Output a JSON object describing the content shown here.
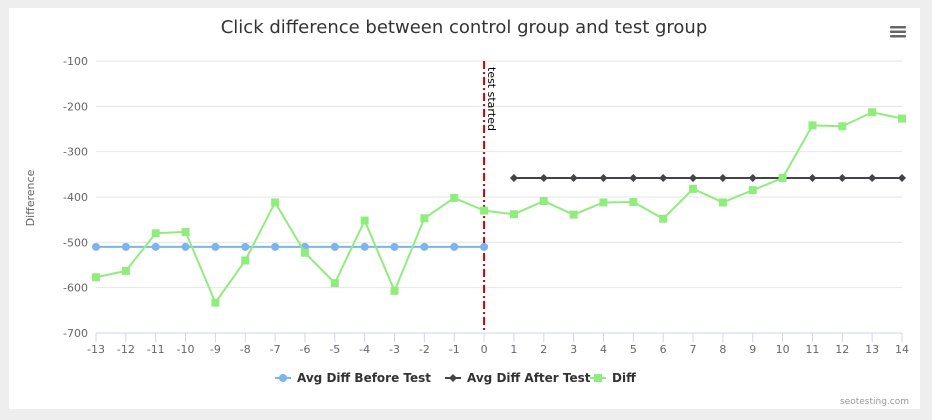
{
  "chart_data": {
    "type": "line",
    "title": "Click difference between control group and test group",
    "ylabel": "Difference",
    "xlabel": "",
    "x": [
      -13,
      -12,
      -11,
      -10,
      -9,
      -8,
      -7,
      -6,
      -5,
      -4,
      -3,
      -2,
      -1,
      0,
      1,
      2,
      3,
      4,
      5,
      6,
      7,
      8,
      9,
      10,
      11,
      12,
      13,
      14
    ],
    "xlim": [
      -13,
      14
    ],
    "ylim": [
      -700,
      -100
    ],
    "yticks": [
      -100,
      -200,
      -300,
      -400,
      -500,
      -600,
      -700
    ],
    "grid": "horizontal",
    "legend_position": "bottom-center",
    "series": [
      {
        "name": "Avg Diff Before Test",
        "marker": "circle",
        "color": "#7cb5ec",
        "points": [
          [
            -13,
            -510
          ],
          [
            -12,
            -510
          ],
          [
            -11,
            -510
          ],
          [
            -10,
            -510
          ],
          [
            -9,
            -510
          ],
          [
            -8,
            -510
          ],
          [
            -7,
            -510
          ],
          [
            -6,
            -510
          ],
          [
            -5,
            -510
          ],
          [
            -4,
            -510
          ],
          [
            -3,
            -510
          ],
          [
            -2,
            -510
          ],
          [
            -1,
            -510
          ],
          [
            0,
            -510
          ]
        ]
      },
      {
        "name": "Avg Diff After Test",
        "marker": "diamond",
        "color": "#434348",
        "points": [
          [
            1,
            -358
          ],
          [
            2,
            -358
          ],
          [
            3,
            -358
          ],
          [
            4,
            -358
          ],
          [
            5,
            -358
          ],
          [
            6,
            -358
          ],
          [
            7,
            -358
          ],
          [
            8,
            -358
          ],
          [
            9,
            -358
          ],
          [
            10,
            -358
          ],
          [
            11,
            -358
          ],
          [
            12,
            -358
          ],
          [
            13,
            -358
          ],
          [
            14,
            -358
          ]
        ]
      },
      {
        "name": "Diff",
        "marker": "square",
        "color": "#90ed7d",
        "points": [
          [
            -13,
            -577
          ],
          [
            -12,
            -563
          ],
          [
            -11,
            -480
          ],
          [
            -10,
            -477
          ],
          [
            -9,
            -633
          ],
          [
            -8,
            -540
          ],
          [
            -7,
            -412
          ],
          [
            -6,
            -523
          ],
          [
            -5,
            -590
          ],
          [
            -4,
            -452
          ],
          [
            -3,
            -607
          ],
          [
            -2,
            -447
          ],
          [
            -1,
            -402
          ],
          [
            0,
            -430
          ],
          [
            1,
            -438
          ],
          [
            2,
            -409
          ],
          [
            3,
            -439
          ],
          [
            4,
            -412
          ],
          [
            5,
            -411
          ],
          [
            6,
            -448
          ],
          [
            7,
            -382
          ],
          [
            8,
            -412
          ],
          [
            9,
            -385
          ],
          [
            10,
            -358
          ],
          [
            11,
            -242
          ],
          [
            12,
            -244
          ],
          [
            13,
            -213
          ],
          [
            14,
            -227
          ]
        ]
      }
    ],
    "plot_lines": [
      {
        "x": 0,
        "label": "test started",
        "color": "#cc0000",
        "style": "dash-dot"
      }
    ]
  },
  "credit": "seotesting.com",
  "menu_icon": "hamburger-menu-icon"
}
